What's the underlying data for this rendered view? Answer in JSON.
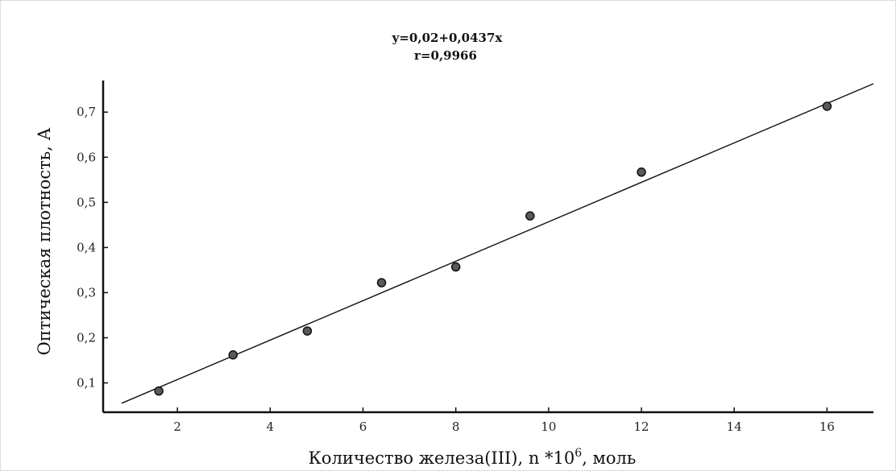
{
  "chart_data": {
    "type": "scatter",
    "title": "y=0,02+0,0437x",
    "subtitle": "r=0,9966",
    "xlabel_parts": {
      "before_sup": "Количество железа(III), n *10",
      "sup": "6",
      "after_sup": ", моль"
    },
    "ylabel": "Оптическая плотность, А",
    "xlim": [
      0.4,
      17.0
    ],
    "ylim": [
      0.035,
      0.77
    ],
    "x_ticks": [
      "2",
      "4",
      "6",
      "8",
      "10",
      "12",
      "14",
      "16"
    ],
    "y_ticks": [
      "0,1",
      "0,2",
      "0,3",
      "0,4",
      "0,5",
      "0,6",
      "0,7"
    ],
    "points": [
      {
        "x": 1.6,
        "y": 0.082
      },
      {
        "x": 3.2,
        "y": 0.162
      },
      {
        "x": 4.8,
        "y": 0.215
      },
      {
        "x": 6.4,
        "y": 0.322
      },
      {
        "x": 8.0,
        "y": 0.357
      },
      {
        "x": 9.6,
        "y": 0.47
      },
      {
        "x": 12.0,
        "y": 0.567
      },
      {
        "x": 16.0,
        "y": 0.713
      }
    ],
    "fit": {
      "intercept": 0.02,
      "slope": 0.0437,
      "x_range": [
        0.8,
        17.0
      ]
    },
    "grid": false,
    "legend": "none",
    "colors": {
      "line": "#111111",
      "marker_fill": "#5a5a5a",
      "marker_stroke": "#111111"
    }
  }
}
